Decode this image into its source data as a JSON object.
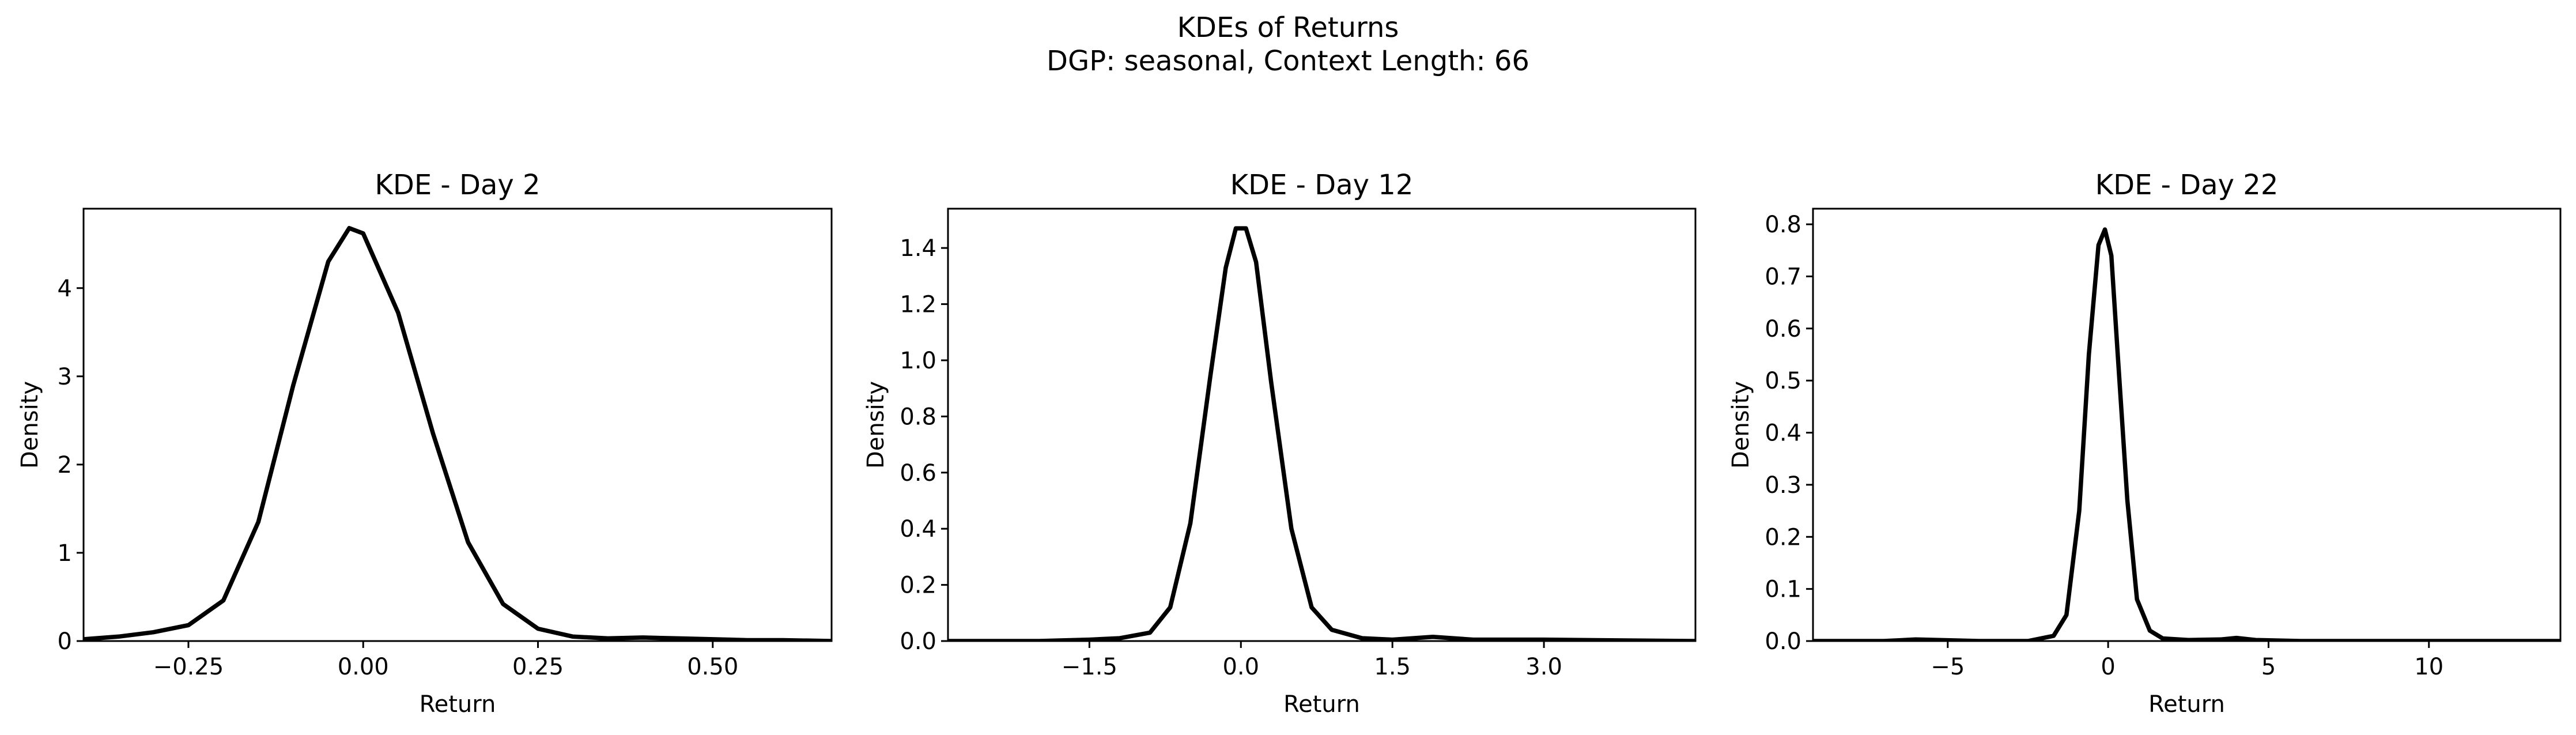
{
  "figure": {
    "title_line1": "KDEs of Returns",
    "title_line2": "DGP: seasonal, Context Length: 66"
  },
  "chart_data": [
    {
      "type": "line",
      "title": "KDE - Day 2",
      "xlabel": "Return",
      "ylabel": "Density",
      "xlim": [
        -0.4,
        0.67
      ],
      "ylim": [
        0,
        4.9
      ],
      "xticks": [
        -0.25,
        0.0,
        0.25,
        0.5
      ],
      "xtick_labels": [
        "−0.25",
        "0.00",
        "0.25",
        "0.50"
      ],
      "yticks": [
        0,
        1,
        2,
        3,
        4
      ],
      "ytick_labels": [
        "0",
        "1",
        "2",
        "3",
        "4"
      ],
      "grid": false,
      "line_color": "#000000",
      "x": [
        -0.4,
        -0.35,
        -0.3,
        -0.25,
        -0.2,
        -0.15,
        -0.1,
        -0.05,
        -0.02,
        0.0,
        0.05,
        0.1,
        0.15,
        0.2,
        0.25,
        0.3,
        0.35,
        0.4,
        0.45,
        0.5,
        0.55,
        0.6,
        0.67
      ],
      "y": [
        0.02,
        0.05,
        0.1,
        0.18,
        0.46,
        1.35,
        2.9,
        4.3,
        4.68,
        4.62,
        3.72,
        2.35,
        1.12,
        0.42,
        0.14,
        0.05,
        0.03,
        0.04,
        0.03,
        0.02,
        0.01,
        0.01,
        0.0
      ]
    },
    {
      "type": "line",
      "title": "KDE - Day 12",
      "xlabel": "Return",
      "ylabel": "Density",
      "xlim": [
        -2.9,
        4.5
      ],
      "ylim": [
        0,
        1.54
      ],
      "xticks": [
        -1.5,
        0.0,
        1.5,
        3.0
      ],
      "xtick_labels": [
        "−1.5",
        "0.0",
        "1.5",
        "3.0"
      ],
      "yticks": [
        0,
        0.2,
        0.4,
        0.6,
        0.8,
        1.0,
        1.2,
        1.4
      ],
      "ytick_labels": [
        "0.0",
        "0.2",
        "0.4",
        "0.6",
        "0.8",
        "1.0",
        "1.2",
        "1.4"
      ],
      "grid": false,
      "line_color": "#000000",
      "x": [
        -2.9,
        -2.0,
        -1.5,
        -1.2,
        -0.9,
        -0.7,
        -0.5,
        -0.3,
        -0.15,
        -0.05,
        0.05,
        0.15,
        0.3,
        0.5,
        0.7,
        0.9,
        1.2,
        1.5,
        1.9,
        2.3,
        3.0,
        3.5,
        4.5
      ],
      "y": [
        0.0,
        0.0,
        0.005,
        0.01,
        0.03,
        0.12,
        0.42,
        0.95,
        1.33,
        1.47,
        1.47,
        1.35,
        0.92,
        0.4,
        0.12,
        0.04,
        0.01,
        0.005,
        0.015,
        0.005,
        0.005,
        0.003,
        0.0
      ]
    },
    {
      "type": "line",
      "title": "KDE - Day 22",
      "xlabel": "Return",
      "ylabel": "Density",
      "xlim": [
        -9.2,
        14.1
      ],
      "ylim": [
        0,
        0.83
      ],
      "xticks": [
        -5,
        0,
        5,
        10
      ],
      "xtick_labels": [
        "−5",
        "0",
        "5",
        "10"
      ],
      "yticks": [
        0,
        0.1,
        0.2,
        0.3,
        0.4,
        0.5,
        0.6,
        0.7,
        0.8
      ],
      "ytick_labels": [
        "0.0",
        "0.1",
        "0.2",
        "0.3",
        "0.4",
        "0.5",
        "0.6",
        "0.7",
        "0.8"
      ],
      "grid": false,
      "line_color": "#000000",
      "x": [
        -9.2,
        -7.0,
        -6.0,
        -4.0,
        -2.5,
        -1.7,
        -1.3,
        -0.9,
        -0.6,
        -0.3,
        -0.1,
        0.1,
        0.3,
        0.6,
        0.9,
        1.3,
        1.7,
        2.5,
        3.5,
        4.0,
        4.6,
        6.0,
        10.0,
        14.1
      ],
      "y": [
        0.0,
        0.0,
        0.003,
        0.0,
        0.0,
        0.01,
        0.05,
        0.25,
        0.55,
        0.76,
        0.79,
        0.74,
        0.55,
        0.27,
        0.08,
        0.02,
        0.005,
        0.002,
        0.003,
        0.006,
        0.002,
        0.0,
        0.0,
        0.0
      ]
    }
  ]
}
